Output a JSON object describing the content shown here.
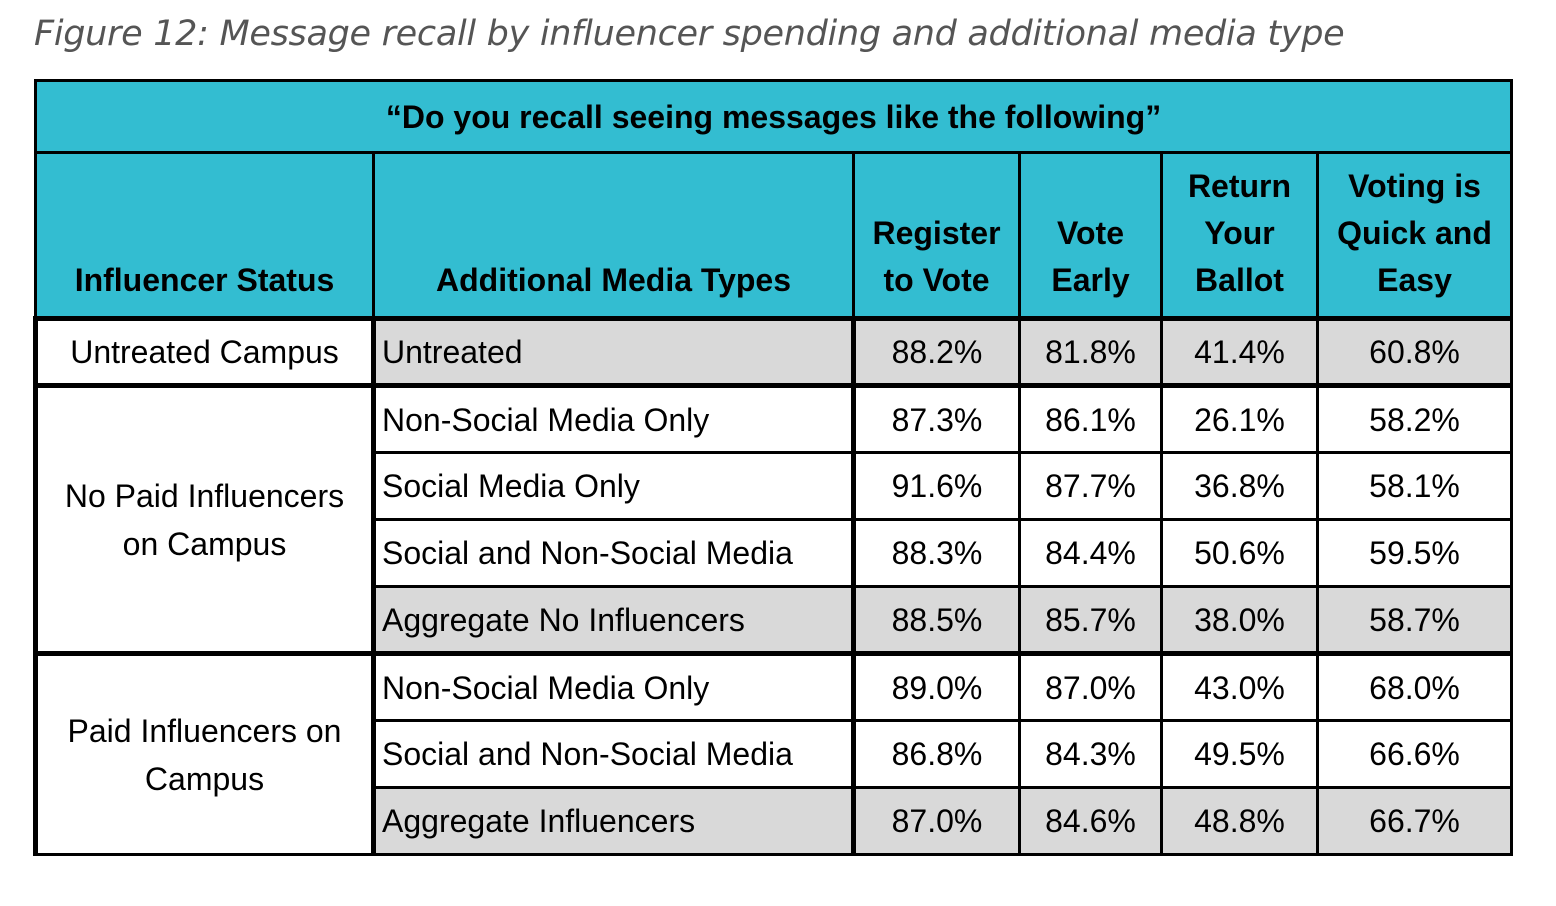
{
  "caption": "Figure 12: Message recall by influencer spending and additional media type",
  "table": {
    "title": "“Do you recall seeing messages like the following”",
    "headers": {
      "status": "Influencer Status",
      "media": "Additional Media Types",
      "register_line1": "Register",
      "register_line2": "to Vote",
      "early_line1": "Vote",
      "early_line2": "Early",
      "return_line1": "Return",
      "return_line2": "Your",
      "return_line3": "Ballot",
      "quick_line1": "Voting is",
      "quick_line2": "Quick and",
      "quick_line3": "Easy"
    },
    "groups": {
      "untreated": "Untreated Campus",
      "no_paid_line1": "No Paid Influencers",
      "no_paid_line2": "on Campus",
      "paid_line1": "Paid Influencers on",
      "paid_line2": "Campus"
    },
    "rows": [
      {
        "media": "Untreated",
        "register": "88.2%",
        "early": "81.8%",
        "ret": "41.4%",
        "quick": "60.8%"
      },
      {
        "media": "Non-Social Media Only",
        "register": "87.3%",
        "early": "86.1%",
        "ret": "26.1%",
        "quick": "58.2%"
      },
      {
        "media": "Social Media Only",
        "register": "91.6%",
        "early": "87.7%",
        "ret": "36.8%",
        "quick": "58.1%"
      },
      {
        "media": "Social and Non-Social Media",
        "register": "88.3%",
        "early": "84.4%",
        "ret": "50.6%",
        "quick": "59.5%"
      },
      {
        "media": "Aggregate No Influencers",
        "register": "88.5%",
        "early": "85.7%",
        "ret": "38.0%",
        "quick": "58.7%"
      },
      {
        "media": "Non-Social Media Only",
        "register": "89.0%",
        "early": "87.0%",
        "ret": "43.0%",
        "quick": "68.0%"
      },
      {
        "media": "Social and Non-Social Media",
        "register": "86.8%",
        "early": "84.3%",
        "ret": "49.5%",
        "quick": "66.6%"
      },
      {
        "media": "Aggregate Influencers",
        "register": "87.0%",
        "early": "84.6%",
        "ret": "48.8%",
        "quick": "66.7%"
      }
    ],
    "colors": {
      "header_bg": "#33bdd1",
      "shade_bg": "#d9d9d9",
      "caption_color": "#555555"
    }
  }
}
